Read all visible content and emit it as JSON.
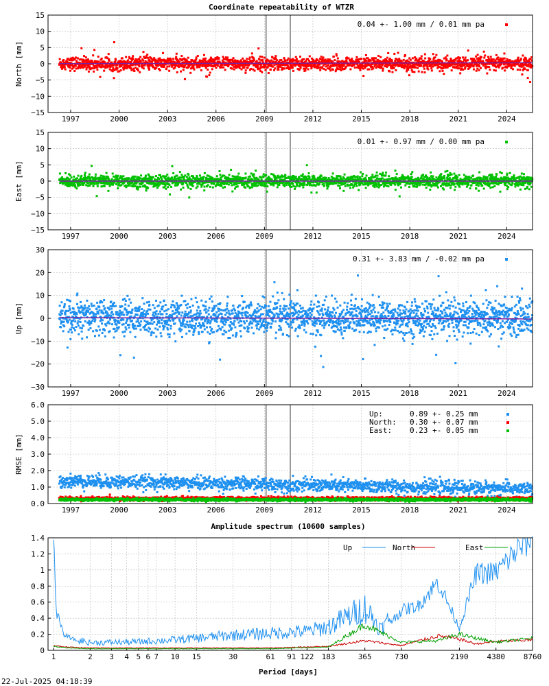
{
  "figure": {
    "title": "Coordinate repeatability of WTZR",
    "timestamp": "22-Jul-2025 04:18:39"
  },
  "chart_data": [
    {
      "type": "scatter",
      "id": "north",
      "ylabel": "North [mm]",
      "xlim": [
        1995.6,
        2025.6
      ],
      "ylim": [
        -15,
        15
      ],
      "yticks": [
        -15,
        -10,
        -5,
        0,
        5,
        10,
        15
      ],
      "xticks": [
        1997,
        2000,
        2003,
        2006,
        2009,
        2012,
        2015,
        2018,
        2021,
        2024
      ],
      "grid": true,
      "stat_label": "0.04 +- 1.00 mm /  0.01 mm pa",
      "series": [
        {
          "color": "#ff0000",
          "mean": 0.04,
          "std": 1.0,
          "trend": 0.01
        }
      ],
      "vertical_markers": [
        2009.1,
        2010.6
      ]
    },
    {
      "type": "scatter",
      "id": "east",
      "ylabel": "East [mm]",
      "xlim": [
        1995.6,
        2025.6
      ],
      "ylim": [
        -15,
        15
      ],
      "yticks": [
        -15,
        -10,
        -5,
        0,
        5,
        10,
        15
      ],
      "xticks": [
        1997,
        2000,
        2003,
        2006,
        2009,
        2012,
        2015,
        2018,
        2021,
        2024
      ],
      "grid": true,
      "stat_label": "0.01 +- 0.97 mm /  0.00 mm pa",
      "series": [
        {
          "color": "#00c000",
          "mean": 0.01,
          "std": 0.97,
          "trend": 0.0
        }
      ],
      "vertical_markers": [
        2009.1,
        2010.6
      ]
    },
    {
      "type": "scatter",
      "id": "up",
      "ylabel": "Up [mm]",
      "xlim": [
        1995.6,
        2025.6
      ],
      "ylim": [
        -30,
        30
      ],
      "yticks": [
        -30,
        -20,
        -10,
        0,
        10,
        20,
        30
      ],
      "xticks": [
        1997,
        2000,
        2003,
        2006,
        2009,
        2012,
        2015,
        2018,
        2021,
        2024
      ],
      "grid": true,
      "stat_label": "0.31 +- 3.83 mm / -0.02 mm pa",
      "series": [
        {
          "color": "#1e90f0",
          "mean": 0.31,
          "std": 3.83,
          "trend": -0.02
        }
      ],
      "vertical_markers": [
        2009.1,
        2010.6
      ]
    },
    {
      "type": "scatter",
      "id": "rmse",
      "ylabel": "RMSE [mm]",
      "xlim": [
        1995.6,
        2025.6
      ],
      "ylim": [
        0,
        6
      ],
      "yticks": [
        0.0,
        1.0,
        2.0,
        3.0,
        4.0,
        5.0,
        6.0
      ],
      "ytick_labels": [
        "0.0",
        "1.0",
        "2.0",
        "3.0",
        "4.0",
        "5.0",
        "6.0"
      ],
      "xticks": [
        1997,
        2000,
        2003,
        2006,
        2009,
        2012,
        2015,
        2018,
        2021,
        2024
      ],
      "grid": true,
      "legend": [
        {
          "name": "Up:",
          "value": "0.89 +- 0.25 mm",
          "color": "#1e90f0",
          "mean": 0.89,
          "std": 0.25
        },
        {
          "name": "North:",
          "value": "0.30 +- 0.07 mm",
          "color": "#ff0000",
          "mean": 0.3,
          "std": 0.07
        },
        {
          "name": "East:",
          "value": "0.23 +- 0.05 mm",
          "color": "#00c000",
          "mean": 0.23,
          "std": 0.05
        }
      ],
      "vertical_markers": [
        2009.1,
        2010.6
      ]
    },
    {
      "type": "line",
      "id": "spectrum",
      "title": "Amplitude spectrum (10600 samples)",
      "xlabel": "Period [days]",
      "xscale": "log",
      "xlim": [
        0.9,
        8760
      ],
      "ylim": [
        0,
        1.4
      ],
      "yticks": [
        0.0,
        0.2,
        0.4,
        0.6,
        0.8,
        1.0,
        1.2,
        1.4
      ],
      "xticks": [
        1,
        2,
        3,
        4,
        5,
        6,
        7,
        10,
        15,
        30,
        61,
        91,
        122,
        183,
        365,
        730,
        2190,
        4380,
        8760
      ],
      "grid": true,
      "legend_position": "top-right",
      "series": [
        {
          "name": "Up",
          "color": "#1e90f0",
          "x": [
            1,
            1.05,
            1.2,
            1.6,
            2,
            5,
            10,
            30,
            61,
            122,
            183,
            365,
            500,
            730,
            1000,
            1460,
            2190,
            3000,
            4380,
            6500,
            8760
          ],
          "y": [
            1.4,
            0.5,
            0.2,
            0.11,
            0.08,
            0.09,
            0.11,
            0.16,
            0.18,
            0.2,
            0.25,
            0.45,
            0.22,
            0.5,
            0.55,
            0.85,
            0.28,
            0.95,
            0.97,
            1.24,
            1.42
          ]
        },
        {
          "name": "North",
          "color": "#cc0000",
          "x": [
            1,
            1.3,
            2,
            10,
            61,
            183,
            365,
            730,
            1460,
            2190,
            3000,
            4380,
            8760
          ],
          "y": [
            0.06,
            0.04,
            0.03,
            0.03,
            0.03,
            0.05,
            0.12,
            0.06,
            0.18,
            0.14,
            0.08,
            0.11,
            0.13
          ]
        },
        {
          "name": "East",
          "color": "#00a000",
          "x": [
            1,
            1.3,
            2,
            10,
            61,
            183,
            365,
            730,
            1460,
            2190,
            3000,
            4380,
            8760
          ],
          "y": [
            0.05,
            0.03,
            0.02,
            0.02,
            0.02,
            0.04,
            0.32,
            0.1,
            0.12,
            0.2,
            0.15,
            0.1,
            0.15
          ]
        }
      ]
    }
  ]
}
